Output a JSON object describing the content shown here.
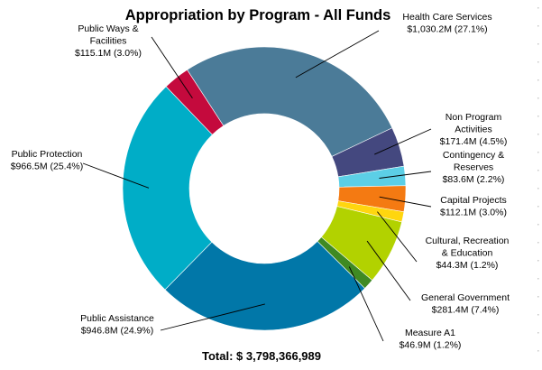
{
  "chart_data": {
    "type": "pie",
    "donut": true,
    "title": "Appropriation by Program - All Funds",
    "total_label": "Total: $ 3,798,366,989",
    "legend": "none",
    "slices": [
      {
        "name": "Health Care Services",
        "value_label": "$1,030.2M (27.1%)",
        "value": 1030.2,
        "percent": 27.1,
        "color": "#4b7b98",
        "label_lines": [
          "Health Care Services",
          "$1,030.2M (27.1%)"
        ]
      },
      {
        "name": "Non Program Activities",
        "value_label": "$171.4M (4.5%)",
        "value": 171.4,
        "percent": 4.5,
        "color": "#44487f",
        "label_lines": [
          "Non Program",
          "Activities",
          "$171.4M (4.5%)"
        ]
      },
      {
        "name": "Contingency & Reserves",
        "value_label": "$83.6M (2.2%)",
        "value": 83.6,
        "percent": 2.2,
        "color": "#5ccfe6",
        "label_lines": [
          "Contingency &",
          "Reserves",
          "$83.6M (2.2%)"
        ]
      },
      {
        "name": "Capital Projects",
        "value_label": "$112.1M (3.0%)",
        "value": 112.1,
        "percent": 3.0,
        "color": "#f47a12",
        "label_lines": [
          "Capital Projects",
          "$112.1M (3.0%)"
        ]
      },
      {
        "name": "Cultural, Recreation & Education",
        "value_label": "$44.3M (1.2%)",
        "value": 44.3,
        "percent": 1.2,
        "color": "#ffd60f",
        "label_lines": [
          "Cultural, Recreation",
          "& Education",
          "$44.3M (1.2%)"
        ]
      },
      {
        "name": "General Government",
        "value_label": "$281.4M (7.4%)",
        "value": 281.4,
        "percent": 7.4,
        "color": "#b2d200",
        "label_lines": [
          "General Government",
          "$281.4M (7.4%)"
        ]
      },
      {
        "name": "Measure A1",
        "value_label": "$46.9M (1.2%)",
        "value": 46.9,
        "percent": 1.2,
        "color": "#3f8a23",
        "label_lines": [
          "Measure A1",
          "$46.9M (1.2%)"
        ]
      },
      {
        "name": "Public Assistance",
        "value_label": "$946.8M (24.9%)",
        "value": 946.8,
        "percent": 24.9,
        "color": "#0177a8",
        "label_lines": [
          "Public Assistance",
          "$946.8M (24.9%)"
        ]
      },
      {
        "name": "Public Protection",
        "value_label": "$966.5M (25.4%)",
        "value": 966.5,
        "percent": 25.4,
        "color": "#00adc7",
        "label_lines": [
          "Public Protection",
          "$966.5M (25.4%)"
        ]
      },
      {
        "name": "Public Ways & Facilities",
        "value_label": "$115.1M (3.0%)",
        "value": 115.1,
        "percent": 3.0,
        "color": "#c40a3d",
        "label_lines": [
          "Public Ways &",
          "Facilities",
          "$115.1M (3.0%)"
        ]
      }
    ]
  }
}
